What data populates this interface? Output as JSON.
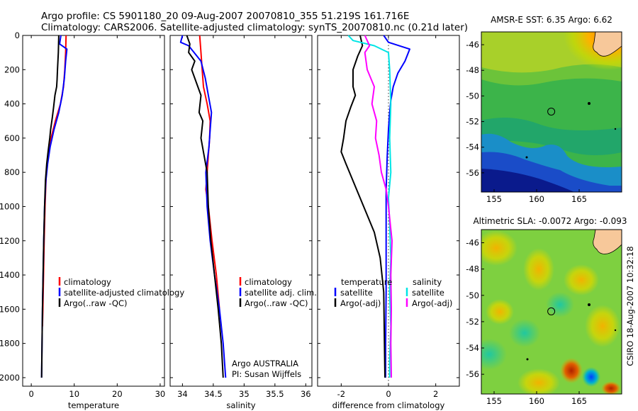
{
  "header": {
    "line1": "Argo profile: CS 5901180_20 09-Aug-2007 20070810_355 51.219S 161.716E",
    "line2": "Climatology: CARS2006. Satellite-adjusted climatology: synTS_20070810.nc (0.21d later)"
  },
  "side_note": "CSIRO 18-Aug-2007 10:32:18",
  "credits": {
    "line1": "Argo AUSTRALIA",
    "line2": "PI: Susan Wijffels"
  },
  "colors": {
    "climatology": "#ff0000",
    "satellite": "#0000ff",
    "argo": "#000000",
    "sat_salinity": "#00e5e5",
    "argo_salinity": "#ff00ff",
    "land": "#f7c89a"
  },
  "chart_data": [
    {
      "id": "temperature",
      "type": "line",
      "xlabel": "temperature",
      "ylabel": "",
      "xlim": [
        -2,
        31
      ],
      "ylim": [
        0,
        2050
      ],
      "y_reversed": true,
      "xticks": [
        0,
        10,
        20,
        30
      ],
      "yticks": [
        0,
        200,
        400,
        600,
        800,
        1000,
        1200,
        1400,
        1600,
        1800,
        2000
      ],
      "legend": [
        "climatology",
        "satellite-adjusted climatology",
        "Argo(..raw -QC)"
      ],
      "series": [
        {
          "name": "climatology",
          "color": "#ff0000",
          "x": [
            8.1,
            8.0,
            7.8,
            7.5,
            6.8,
            5.6,
            4.6,
            3.9,
            3.5,
            3.2,
            3.0,
            2.85,
            2.7,
            2.6
          ],
          "y": [
            0,
            100,
            200,
            300,
            400,
            500,
            600,
            700,
            800,
            1000,
            1200,
            1400,
            1600,
            1700
          ]
        },
        {
          "name": "satellite-adjusted climatology",
          "color": "#0000ff",
          "x": [
            6.9,
            6.6,
            8.3,
            8.0,
            7.7,
            7.2,
            6.4,
            5.3,
            4.4,
            3.8,
            3.4,
            3.1,
            2.9,
            2.75,
            2.6,
            2.5,
            2.4
          ],
          "y": [
            0,
            50,
            80,
            150,
            250,
            350,
            450,
            550,
            650,
            750,
            850,
            1000,
            1200,
            1400,
            1600,
            1800,
            2000
          ]
        },
        {
          "name": "Argo(..raw -QC)",
          "color": "#000000",
          "x": [
            6.4,
            6.3,
            6.1,
            6.0,
            5.9,
            5.5,
            5.2,
            4.9,
            4.5,
            4.3,
            3.9,
            3.6,
            3.3,
            3.1,
            2.9,
            2.75,
            2.6,
            2.5,
            2.4
          ],
          "y": [
            0,
            100,
            200,
            260,
            300,
            350,
            420,
            480,
            550,
            600,
            680,
            750,
            850,
            1000,
            1200,
            1400,
            1600,
            1800,
            2000
          ]
        }
      ]
    },
    {
      "id": "salinity",
      "type": "line",
      "xlabel": "salinity",
      "ylabel": "",
      "xlim": [
        33.8,
        36.1
      ],
      "ylim": [
        0,
        2050
      ],
      "y_reversed": true,
      "xticks": [
        34,
        34.5,
        35,
        35.5,
        36
      ],
      "xticklabels": [
        "34",
        "34.5",
        "35",
        "35.5",
        "36"
      ],
      "legend": [
        "climatology",
        "satellite adj. clim.",
        "Argo(..raw -QC)"
      ],
      "series": [
        {
          "name": "climatology",
          "color": "#ff0000",
          "x": [
            34.28,
            34.3,
            34.32,
            34.34,
            34.4,
            34.45,
            34.44,
            34.42,
            34.4,
            34.38,
            34.42,
            34.48,
            34.55,
            34.6
          ],
          "y": [
            0,
            100,
            200,
            300,
            400,
            500,
            600,
            700,
            800,
            900,
            1000,
            1200,
            1400,
            1600
          ]
        },
        {
          "name": "satellite adj. clim.",
          "color": "#0000ff",
          "x": [
            34.0,
            33.97,
            34.1,
            34.3,
            34.37,
            34.42,
            34.47,
            34.45,
            34.43,
            34.38,
            34.4,
            34.45,
            34.52,
            34.6,
            34.66,
            34.7
          ],
          "y": [
            0,
            40,
            60,
            150,
            250,
            350,
            450,
            550,
            650,
            800,
            1000,
            1200,
            1400,
            1600,
            1800,
            2000
          ]
        },
        {
          "name": "Argo(..raw -QC)",
          "color": "#000000",
          "x": [
            34.07,
            34.12,
            34.1,
            34.2,
            34.15,
            34.25,
            34.3,
            34.27,
            34.33,
            34.3,
            34.35,
            34.4,
            34.42,
            34.46,
            34.52,
            34.58,
            34.63,
            34.66
          ],
          "y": [
            0,
            50,
            100,
            150,
            200,
            300,
            350,
            450,
            500,
            600,
            700,
            800,
            1000,
            1200,
            1400,
            1600,
            1800,
            2000
          ]
        }
      ]
    },
    {
      "id": "difference",
      "type": "line",
      "xlabel": "difference from climatology",
      "ylabel": "",
      "xlim": [
        -3,
        3
      ],
      "ylim": [
        0,
        2050
      ],
      "y_reversed": true,
      "xticks": [
        -2,
        0,
        2
      ],
      "legend_left_title": "temperature",
      "legend_right_title": "salinity",
      "legend_left": [
        "satellite",
        "Argo(-adj)"
      ],
      "legend_right": [
        "satellite",
        "Argo(-adj)"
      ],
      "series": [
        {
          "name": "temperature satellite",
          "color": "#0000ff",
          "x": [
            -0.2,
            0.0,
            0.9,
            0.7,
            0.4,
            0.2,
            0.1,
            0.05,
            0.0,
            -0.05,
            -0.1,
            -0.1,
            -0.1,
            -0.1,
            -0.12,
            -0.12
          ],
          "y": [
            0,
            40,
            80,
            150,
            220,
            300,
            380,
            450,
            550,
            700,
            900,
            1000,
            1200,
            1500,
            1800,
            2000
          ]
        },
        {
          "name": "temperature Argo(-adj)",
          "color": "#000000",
          "x": [
            -1.2,
            -1.1,
            -1.3,
            -1.5,
            -1.5,
            -1.4,
            -1.6,
            -1.8,
            -1.9,
            -2.0,
            -1.8,
            -1.5,
            -1.2,
            -0.9,
            -0.6,
            -0.35,
            -0.2,
            -0.15
          ],
          "y": [
            0,
            60,
            120,
            200,
            300,
            350,
            420,
            500,
            600,
            680,
            750,
            850,
            950,
            1050,
            1150,
            1300,
            1500,
            2000
          ]
        },
        {
          "name": "salinity satellite",
          "color": "#00e5e5",
          "x": [
            -1.7,
            -1.5,
            -0.6,
            0.0,
            0.05,
            0.1,
            0.05,
            0.1,
            0.0,
            0.05,
            0.1,
            0.05,
            0.1,
            0.05,
            0.05
          ],
          "y": [
            0,
            30,
            60,
            100,
            200,
            400,
            600,
            800,
            950,
            1100,
            1300,
            1500,
            1700,
            1900,
            2000
          ]
        },
        {
          "name": "salinity Argo(-adj)",
          "color": "#ff00ff",
          "x": [
            -1.0,
            -0.8,
            -1.0,
            -0.9,
            -0.6,
            -0.7,
            -0.5,
            -0.55,
            -0.4,
            -0.3,
            -0.1,
            0.0,
            0.15,
            0.1,
            0.12,
            0.1,
            0.12
          ],
          "y": [
            0,
            60,
            100,
            200,
            300,
            400,
            500,
            600,
            700,
            800,
            900,
            1000,
            1200,
            1400,
            1600,
            1800,
            2000
          ]
        }
      ]
    },
    {
      "id": "sst_map",
      "type": "heatmap",
      "title": "AMSR-E SST: 6.35 Argo: 6.62",
      "xlim": [
        153.5,
        170
      ],
      "ylim": [
        -57.5,
        -45
      ],
      "xticks": [
        155,
        160,
        165
      ],
      "yticks": [
        -46,
        -48,
        -50,
        -52,
        -54,
        -56
      ],
      "profile_marker": {
        "lon": 161.716,
        "lat": -51.219
      }
    },
    {
      "id": "sla_map",
      "type": "heatmap",
      "title": "Altimetric SLA: -0.0072 Argo: -0.093",
      "xlim": [
        153.5,
        170
      ],
      "ylim": [
        -57.5,
        -45
      ],
      "xticks": [
        155,
        160,
        165
      ],
      "yticks": [
        -46,
        -48,
        -50,
        -52,
        -54,
        -56
      ],
      "profile_marker": {
        "lon": 161.716,
        "lat": -51.219
      }
    }
  ]
}
